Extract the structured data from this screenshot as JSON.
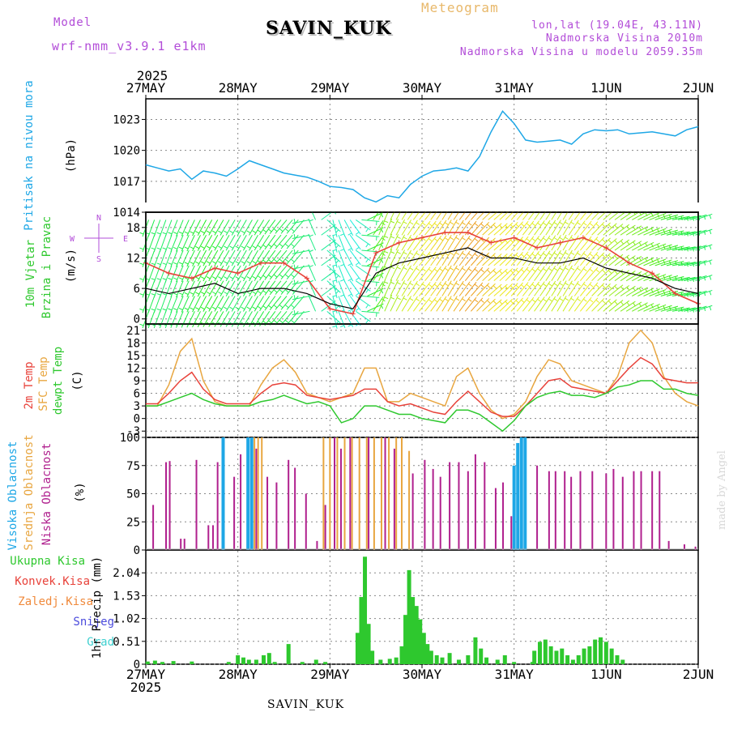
{
  "header": {
    "model_label": "Model",
    "model_run": "wrf-nmm_v3.9.1 e1km",
    "station": "SAVIN_KUK",
    "title": "Meteogram",
    "coords": "lon,lat (19.04E, 43.11N)",
    "elevation": "Nadmorska Visina 2010m",
    "model_elevation": "Nadmorska Visina u modelu 2059.35m",
    "credit": "made by Angel",
    "footer_station": "SAVIN_KUK"
  },
  "time_axis": {
    "year": "2025",
    "labels": [
      "27MAY",
      "28MAY",
      "29MAY",
      "30MAY",
      "31MAY",
      "1JUN",
      "2JUN"
    ]
  },
  "colors": {
    "pressure": "#1ea7e6",
    "temp_2m": "#e8423a",
    "temp_sfc": "#e8a640",
    "dewpoint": "#2ec82e",
    "cloud_high": "#1ea7e6",
    "cloud_mid": "#e8a640",
    "cloud_low": "#b0208e",
    "precip_total": "#2ec82e",
    "precip_conv": "#e8423a",
    "precip_frozen": "#f08a3c",
    "snow": "#4a4adc",
    "graupel": "#3fd0d0",
    "gust": "#e8423a",
    "wind_speed": "#000000"
  },
  "chart_data": [
    {
      "type": "line",
      "title": "",
      "ylabel_lines": [
        "Pritisak na nivou mora",
        "(hPa)"
      ],
      "ylim": [
        1014,
        1025
      ],
      "yticks": [
        "1014",
        "1017",
        "1020",
        "1023"
      ],
      "x_days": [
        0,
        0.125,
        0.25,
        0.375,
        0.5,
        0.625,
        0.75,
        0.875,
        1.0,
        1.125,
        1.25,
        1.375,
        1.5,
        1.625,
        1.75,
        1.875,
        2.0,
        2.125,
        2.25,
        2.375,
        2.5,
        2.625,
        2.75,
        2.875,
        3.0,
        3.125,
        3.25,
        3.375,
        3.5,
        3.625,
        3.75,
        3.875,
        4.0,
        4.125,
        4.25,
        4.375,
        4.5,
        4.625,
        4.75,
        4.875,
        5.0,
        5.125,
        5.25,
        5.375,
        5.5,
        5.625,
        5.75,
        5.875,
        6.0
      ],
      "series": [
        {
          "key": "pressure",
          "values": [
            1018.6,
            1018.3,
            1018.0,
            1018.2,
            1017.2,
            1018.0,
            1017.8,
            1017.5,
            1018.2,
            1019.0,
            1018.6,
            1018.2,
            1017.8,
            1017.6,
            1017.4,
            1017.0,
            1016.5,
            1016.4,
            1016.2,
            1015.4,
            1015.0,
            1015.6,
            1015.4,
            1016.7,
            1017.5,
            1018.0,
            1018.1,
            1018.3,
            1018.0,
            1019.4,
            1021.8,
            1023.8,
            1022.6,
            1021.0,
            1020.8,
            1020.9,
            1021.0,
            1020.6,
            1021.6,
            1022.0,
            1021.9,
            1022.0,
            1021.6,
            1021.7,
            1021.8,
            1021.6,
            1021.4,
            1022.0,
            1022.3
          ]
        }
      ]
    },
    {
      "type": "line",
      "title": "",
      "ylabel_lines": [
        "10m Vjetar",
        "Brzina i Pravac",
        "(m/s)"
      ],
      "compass_labels": [
        "N",
        "E",
        "S",
        "W"
      ],
      "ylim": [
        -1,
        21
      ],
      "yticks": [
        "0",
        "6",
        "12",
        "18"
      ],
      "x_days": [
        0,
        0.25,
        0.5,
        0.75,
        1.0,
        1.25,
        1.5,
        1.75,
        2.0,
        2.25,
        2.5,
        2.75,
        3.0,
        3.25,
        3.5,
        3.75,
        4.0,
        4.25,
        4.5,
        4.75,
        5.0,
        5.25,
        5.5,
        5.75,
        6.0
      ],
      "series": [
        {
          "key": "wind_speed",
          "values": [
            6,
            5,
            6,
            7,
            5,
            6,
            6,
            5,
            3,
            2,
            9,
            11,
            12,
            13,
            14,
            12,
            12,
            11,
            11,
            12,
            10,
            9,
            8,
            6,
            5
          ]
        },
        {
          "key": "gust",
          "values": [
            11,
            9,
            8,
            10,
            9,
            11,
            11,
            8,
            2,
            1,
            13,
            15,
            16,
            17,
            17,
            15,
            16,
            14,
            15,
            16,
            14,
            11,
            9,
            5,
            3
          ]
        }
      ],
      "wind_barb_rows": [
        0,
        3,
        6,
        9,
        12,
        15,
        18
      ],
      "wind_direction_deg": [
        20,
        20,
        25,
        30,
        30,
        30,
        40,
        40,
        350,
        320,
        200,
        210,
        220,
        210,
        220,
        230,
        220,
        215,
        210,
        220,
        230,
        240,
        250,
        260,
        250
      ]
    },
    {
      "type": "line",
      "title": "",
      "ylabel_lines": [
        "2m Temp",
        "SFC Temp",
        "dewpt Temp",
        "(C)"
      ],
      "ylim": [
        -4.5,
        22.5
      ],
      "yticks": [
        "-3",
        "0",
        "3",
        "6",
        "9",
        "12",
        "15",
        "18",
        "21"
      ],
      "x_days": [
        0,
        0.125,
        0.25,
        0.375,
        0.5,
        0.625,
        0.75,
        0.875,
        1.0,
        1.125,
        1.25,
        1.375,
        1.5,
        1.625,
        1.75,
        1.875,
        2.0,
        2.125,
        2.25,
        2.375,
        2.5,
        2.625,
        2.75,
        2.875,
        3.0,
        3.125,
        3.25,
        3.375,
        3.5,
        3.625,
        3.75,
        3.875,
        4.0,
        4.125,
        4.25,
        4.375,
        4.5,
        4.625,
        4.75,
        4.875,
        5.0,
        5.125,
        5.25,
        5.375,
        5.5,
        5.625,
        5.75,
        5.875,
        6.0
      ],
      "series": [
        {
          "key": "temp_sfc",
          "values": [
            3,
            3,
            8,
            16,
            19,
            9,
            4,
            3,
            3,
            3,
            8,
            12,
            14,
            11,
            6,
            5,
            4,
            5,
            6,
            12,
            12,
            4,
            4,
            6,
            5,
            4,
            3,
            10,
            12,
            6,
            2,
            0,
            1,
            4,
            10,
            14,
            13,
            9,
            8,
            7,
            6,
            10,
            18,
            21,
            18,
            10,
            6,
            4,
            3
          ]
        },
        {
          "key": "temp_2m",
          "values": [
            3.5,
            3.5,
            6,
            9,
            11,
            7,
            4.5,
            3.5,
            3.5,
            3.5,
            6,
            8,
            8.5,
            8,
            5.5,
            5,
            4.5,
            5,
            5.5,
            7,
            7,
            4,
            3,
            3.5,
            2.5,
            1.5,
            1,
            4,
            6.5,
            4,
            1.5,
            0.5,
            0.5,
            3,
            6,
            9,
            9.5,
            7.5,
            7,
            6.5,
            6,
            9,
            12,
            14.5,
            13,
            9.5,
            9,
            8.5,
            8.5
          ]
        },
        {
          "key": "dewpoint",
          "values": [
            3,
            3,
            4,
            5,
            6,
            4.5,
            3.5,
            3,
            3,
            3,
            4,
            4.5,
            5.5,
            4.5,
            3.5,
            4,
            3,
            -1,
            0,
            3,
            3,
            2,
            1,
            1,
            0,
            -0.5,
            -1,
            2,
            2,
            1,
            -1,
            -3,
            -0.5,
            3,
            5,
            6,
            6.5,
            5.5,
            5.5,
            5,
            6,
            7.5,
            8,
            9,
            9,
            7,
            7,
            6,
            5.5
          ]
        }
      ]
    },
    {
      "type": "bar",
      "title": "",
      "ylabel_lines": [
        "Visoka Oblacnost",
        "Srednja Oblacnost",
        "Niska Oblacnost",
        "(%)"
      ],
      "ylim": [
        0,
        100
      ],
      "yticks": [
        "0",
        "25",
        "50",
        "75",
        "100"
      ],
      "high_cloud": [
        {
          "x": 0.84,
          "v": 100
        },
        {
          "x": 1.11,
          "v": 100
        },
        {
          "x": 1.15,
          "v": 100
        },
        {
          "x": 4.0,
          "v": 75
        },
        {
          "x": 4.04,
          "v": 95
        },
        {
          "x": 4.08,
          "v": 100
        },
        {
          "x": 4.12,
          "v": 100
        }
      ],
      "mid_cloud": [
        {
          "x": 1.18,
          "v": 100
        },
        {
          "x": 1.22,
          "v": 100
        },
        {
          "x": 1.26,
          "v": 100
        },
        {
          "x": 1.93,
          "v": 100
        },
        {
          "x": 2.0,
          "v": 100
        },
        {
          "x": 2.08,
          "v": 100
        },
        {
          "x": 2.16,
          "v": 100
        },
        {
          "x": 2.24,
          "v": 100
        },
        {
          "x": 2.32,
          "v": 100
        },
        {
          "x": 2.4,
          "v": 100
        },
        {
          "x": 2.48,
          "v": 100
        },
        {
          "x": 2.56,
          "v": 100
        },
        {
          "x": 2.64,
          "v": 100
        },
        {
          "x": 2.72,
          "v": 100
        },
        {
          "x": 2.78,
          "v": 100
        },
        {
          "x": 2.86,
          "v": 88
        }
      ],
      "low_cloud": [
        {
          "x": 0.08,
          "v": 40
        },
        {
          "x": 0.22,
          "v": 78
        },
        {
          "x": 0.26,
          "v": 79
        },
        {
          "x": 0.38,
          "v": 10
        },
        {
          "x": 0.42,
          "v": 10
        },
        {
          "x": 0.55,
          "v": 80
        },
        {
          "x": 0.68,
          "v": 22
        },
        {
          "x": 0.73,
          "v": 22
        },
        {
          "x": 0.78,
          "v": 78
        },
        {
          "x": 0.96,
          "v": 65
        },
        {
          "x": 1.03,
          "v": 85
        },
        {
          "x": 1.2,
          "v": 90
        },
        {
          "x": 1.32,
          "v": 65
        },
        {
          "x": 1.42,
          "v": 60
        },
        {
          "x": 1.55,
          "v": 80
        },
        {
          "x": 1.62,
          "v": 73
        },
        {
          "x": 1.74,
          "v": 50
        },
        {
          "x": 1.86,
          "v": 8
        },
        {
          "x": 1.95,
          "v": 40
        },
        {
          "x": 2.05,
          "v": 100
        },
        {
          "x": 2.12,
          "v": 90
        },
        {
          "x": 2.22,
          "v": 100
        },
        {
          "x": 2.42,
          "v": 100
        },
        {
          "x": 2.6,
          "v": 100
        },
        {
          "x": 2.7,
          "v": 90
        },
        {
          "x": 2.9,
          "v": 68
        },
        {
          "x": 3.03,
          "v": 80
        },
        {
          "x": 3.12,
          "v": 72
        },
        {
          "x": 3.2,
          "v": 65
        },
        {
          "x": 3.3,
          "v": 78
        },
        {
          "x": 3.4,
          "v": 78
        },
        {
          "x": 3.5,
          "v": 70
        },
        {
          "x": 3.58,
          "v": 85
        },
        {
          "x": 3.68,
          "v": 78
        },
        {
          "x": 3.8,
          "v": 55
        },
        {
          "x": 3.88,
          "v": 60
        },
        {
          "x": 3.97,
          "v": 30
        },
        {
          "x": 4.25,
          "v": 75
        },
        {
          "x": 4.38,
          "v": 70
        },
        {
          "x": 4.45,
          "v": 70
        },
        {
          "x": 4.55,
          "v": 70
        },
        {
          "x": 4.62,
          "v": 65
        },
        {
          "x": 4.72,
          "v": 70
        },
        {
          "x": 4.85,
          "v": 70
        },
        {
          "x": 5.0,
          "v": 68
        },
        {
          "x": 5.08,
          "v": 72
        },
        {
          "x": 5.18,
          "v": 65
        },
        {
          "x": 5.3,
          "v": 70
        },
        {
          "x": 5.38,
          "v": 70
        },
        {
          "x": 5.5,
          "v": 70
        },
        {
          "x": 5.58,
          "v": 70
        },
        {
          "x": 5.68,
          "v": 8
        },
        {
          "x": 5.85,
          "v": 5
        },
        {
          "x": 5.97,
          "v": 3
        }
      ]
    },
    {
      "type": "bar",
      "title": "",
      "legend": [
        "Ukupna Kisa",
        "Konvek.Kisa",
        "Zaledj.Kisa",
        "Snijeg",
        "Grad"
      ],
      "ylabel_lines": [
        "1hr Precip (mm)"
      ],
      "ylim": [
        0,
        2.55
      ],
      "yticks": [
        "0",
        "0.51",
        "1.02",
        "1.53",
        "2.04"
      ],
      "total": [
        {
          "x": 0.02,
          "v": 0.06
        },
        {
          "x": 0.1,
          "v": 0.08
        },
        {
          "x": 0.18,
          "v": 0.05
        },
        {
          "x": 0.3,
          "v": 0.07
        },
        {
          "x": 0.5,
          "v": 0.06
        },
        {
          "x": 0.9,
          "v": 0.05
        },
        {
          "x": 1.0,
          "v": 0.2
        },
        {
          "x": 1.06,
          "v": 0.15
        },
        {
          "x": 1.12,
          "v": 0.1
        },
        {
          "x": 1.2,
          "v": 0.1
        },
        {
          "x": 1.28,
          "v": 0.2
        },
        {
          "x": 1.34,
          "v": 0.25
        },
        {
          "x": 1.4,
          "v": 0.05
        },
        {
          "x": 1.55,
          "v": 0.45
        },
        {
          "x": 1.7,
          "v": 0.05
        },
        {
          "x": 1.85,
          "v": 0.1
        },
        {
          "x": 1.95,
          "v": 0.05
        },
        {
          "x": 2.3,
          "v": 0.7
        },
        {
          "x": 2.34,
          "v": 1.5
        },
        {
          "x": 2.38,
          "v": 2.4
        },
        {
          "x": 2.42,
          "v": 0.9
        },
        {
          "x": 2.46,
          "v": 0.3
        },
        {
          "x": 2.55,
          "v": 0.1
        },
        {
          "x": 2.65,
          "v": 0.12
        },
        {
          "x": 2.72,
          "v": 0.15
        },
        {
          "x": 2.78,
          "v": 0.4
        },
        {
          "x": 2.82,
          "v": 1.1
        },
        {
          "x": 2.86,
          "v": 2.1
        },
        {
          "x": 2.9,
          "v": 1.5
        },
        {
          "x": 2.94,
          "v": 1.3
        },
        {
          "x": 2.98,
          "v": 1.0
        },
        {
          "x": 3.02,
          "v": 0.7
        },
        {
          "x": 3.06,
          "v": 0.45
        },
        {
          "x": 3.1,
          "v": 0.3
        },
        {
          "x": 3.16,
          "v": 0.2
        },
        {
          "x": 3.22,
          "v": 0.15
        },
        {
          "x": 3.3,
          "v": 0.25
        },
        {
          "x": 3.4,
          "v": 0.1
        },
        {
          "x": 3.5,
          "v": 0.2
        },
        {
          "x": 3.58,
          "v": 0.6
        },
        {
          "x": 3.64,
          "v": 0.35
        },
        {
          "x": 3.7,
          "v": 0.15
        },
        {
          "x": 3.82,
          "v": 0.1
        },
        {
          "x": 3.9,
          "v": 0.2
        },
        {
          "x": 4.0,
          "v": 0.05
        },
        {
          "x": 4.2,
          "v": 0.05
        },
        {
          "x": 4.2,
          "v": 0.0
        },
        {
          "x": 4.22,
          "v": 0.3
        },
        {
          "x": 4.28,
          "v": 0.5
        },
        {
          "x": 4.34,
          "v": 0.55
        },
        {
          "x": 4.4,
          "v": 0.4
        },
        {
          "x": 4.46,
          "v": 0.3
        },
        {
          "x": 4.52,
          "v": 0.35
        },
        {
          "x": 4.58,
          "v": 0.2
        },
        {
          "x": 4.64,
          "v": 0.1
        },
        {
          "x": 4.7,
          "v": 0.2
        },
        {
          "x": 4.76,
          "v": 0.35
        },
        {
          "x": 4.82,
          "v": 0.4
        },
        {
          "x": 4.88,
          "v": 0.55
        },
        {
          "x": 4.94,
          "v": 0.6
        },
        {
          "x": 5.0,
          "v": 0.5
        },
        {
          "x": 5.06,
          "v": 0.35
        },
        {
          "x": 5.12,
          "v": 0.2
        },
        {
          "x": 5.18,
          "v": 0.1
        }
      ]
    }
  ]
}
